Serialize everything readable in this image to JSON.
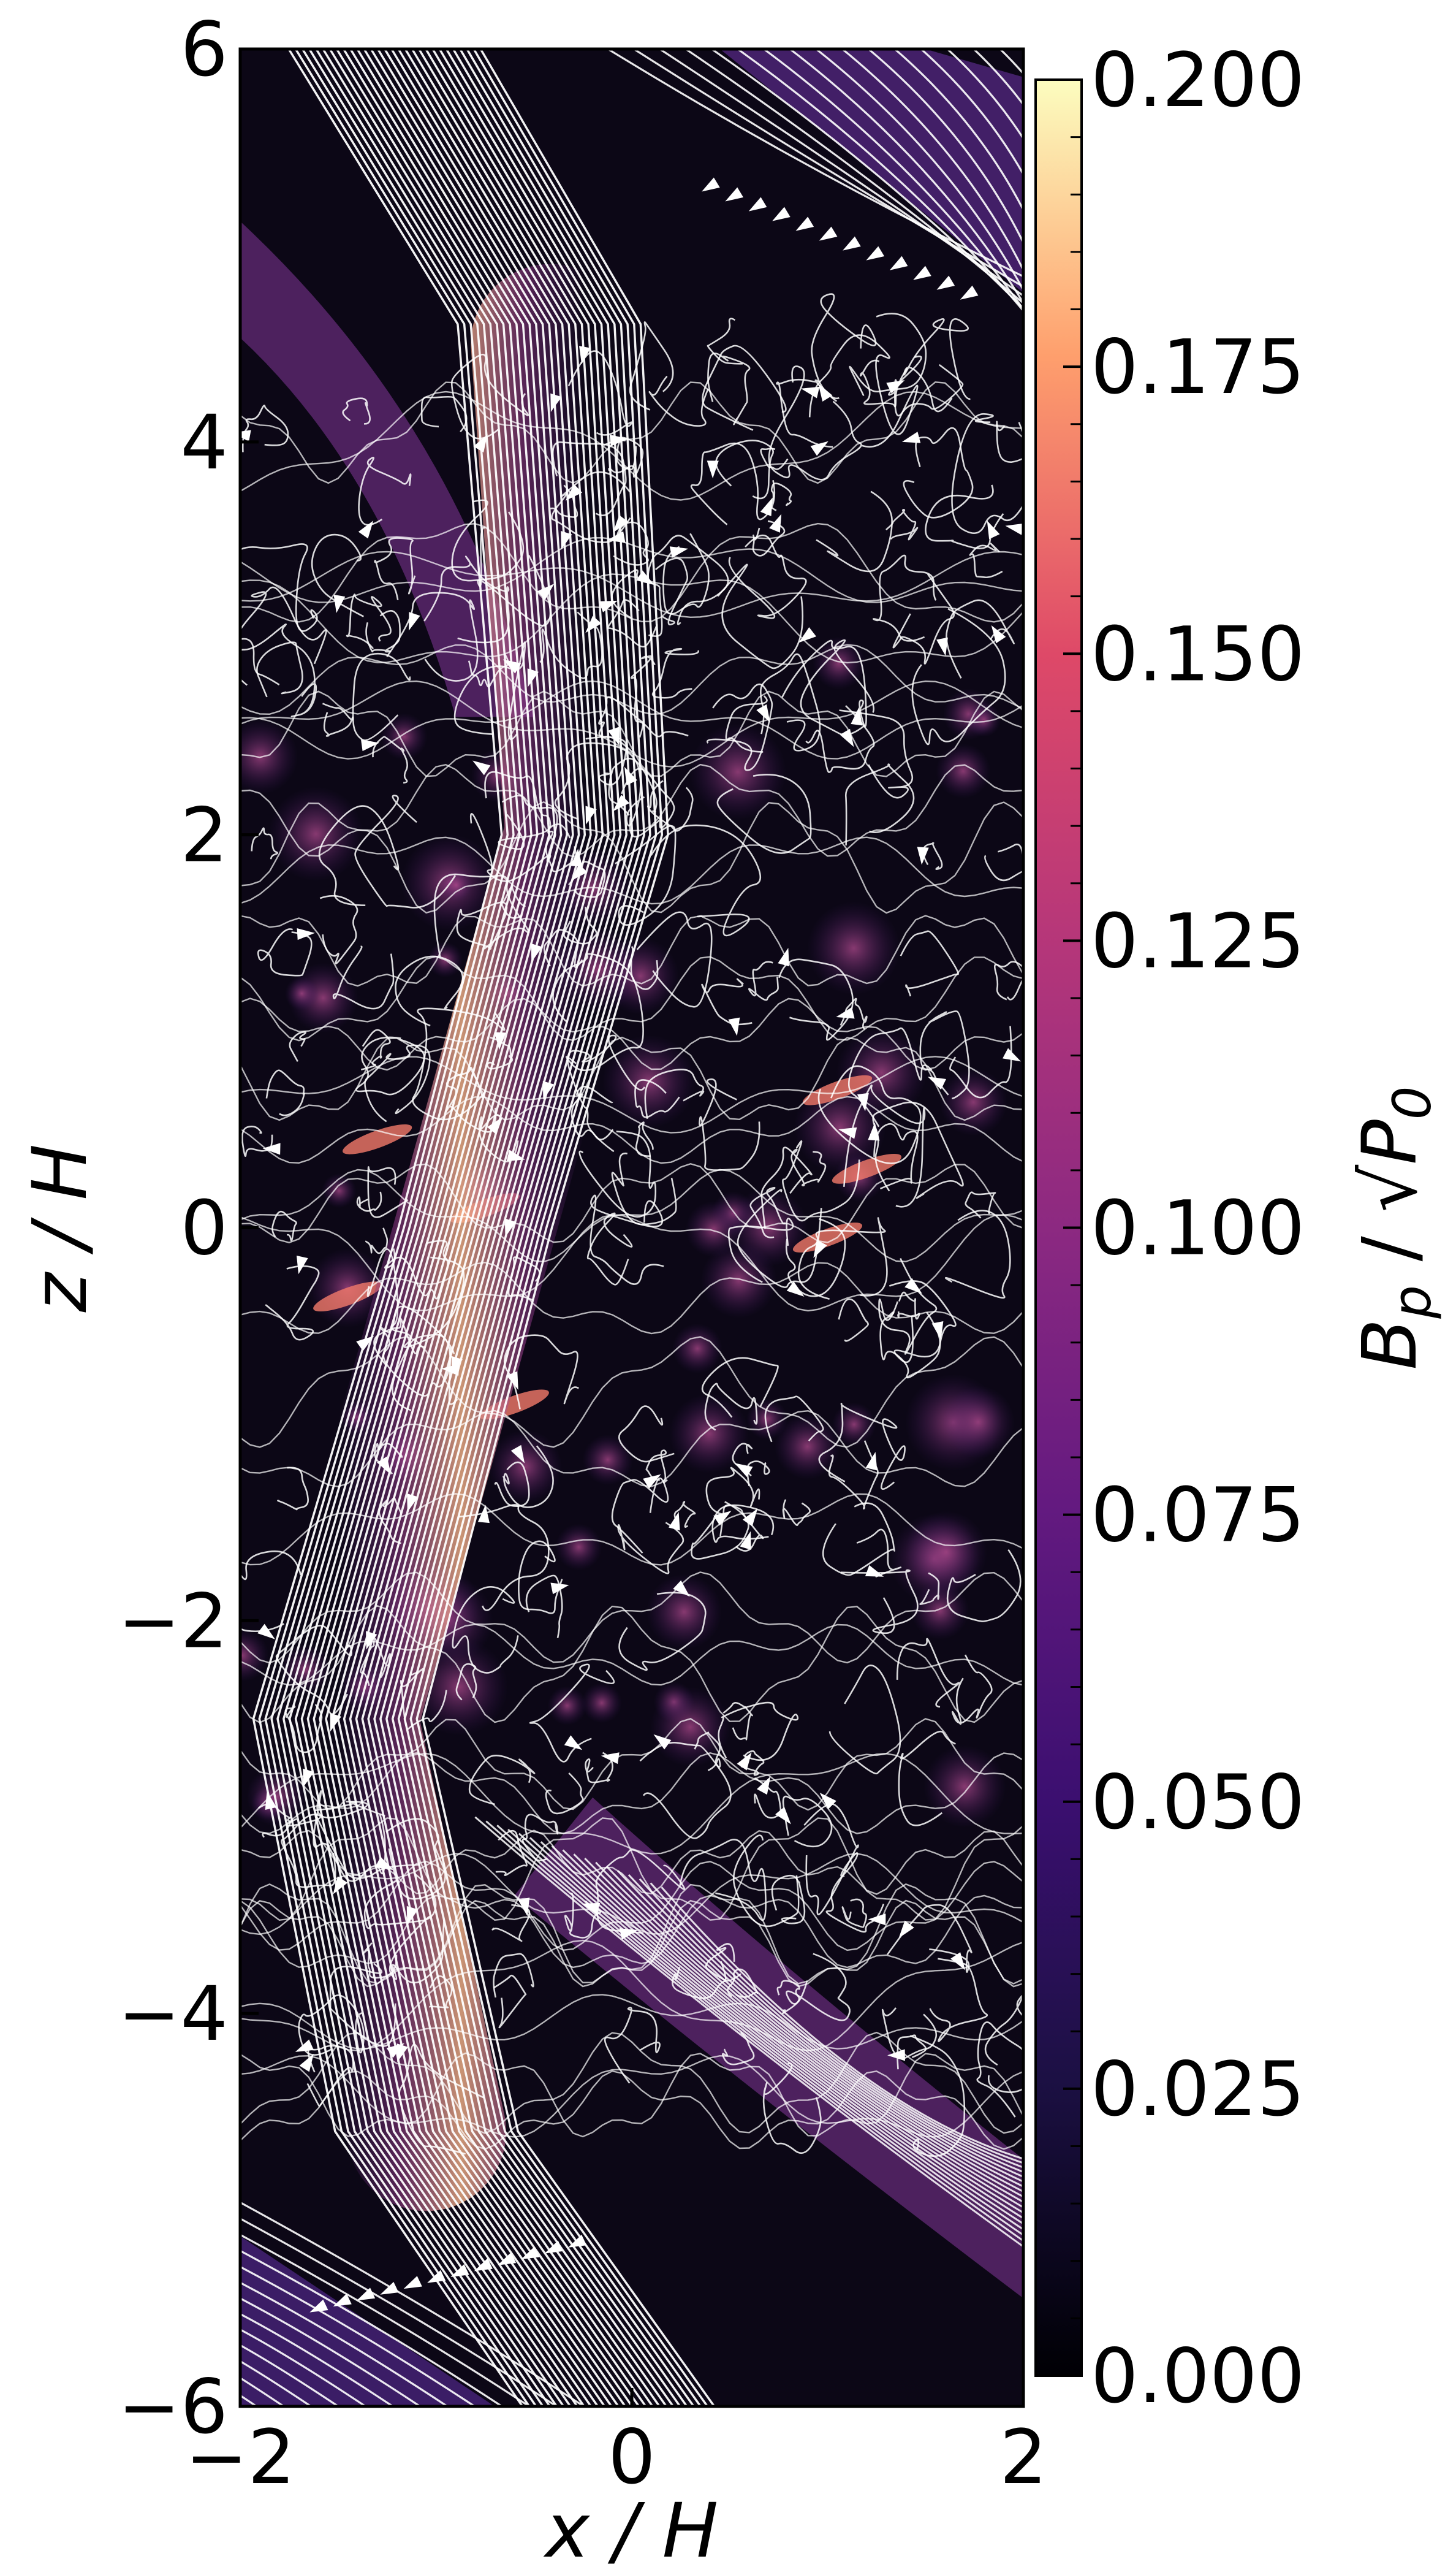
{
  "chart_data": {
    "type": "heatmap",
    "title": "",
    "xlabel": "x / H",
    "ylabel": "z / H",
    "xlim": [
      -2,
      2
    ],
    "ylim": [
      -6,
      6
    ],
    "x_ticks": [
      -2,
      0,
      2
    ],
    "y_ticks": [
      -6,
      -4,
      -2,
      0,
      2,
      4,
      6
    ],
    "x_tick_labels": [
      "−2",
      "0",
      "2"
    ],
    "y_tick_labels": [
      "−6",
      "−4",
      "−2",
      "0",
      "2",
      "4",
      "6"
    ],
    "colorbar": {
      "label_main": "B",
      "label_sub": "p",
      "label_sep": " / √",
      "label_var": "P",
      "label_var_sub": "0",
      "range": [
        0.0,
        0.2
      ],
      "colormap": "magma",
      "ticks": [
        0.0,
        0.025,
        0.05,
        0.075,
        0.1,
        0.125,
        0.15,
        0.175,
        0.2
      ],
      "tick_labels": [
        "0.000",
        "0.025",
        "0.050",
        "0.075",
        "0.100",
        "0.125",
        "0.150",
        "0.175",
        "0.200"
      ]
    },
    "colors": {
      "background_field": "#0c0716",
      "streamline": "#ffffff",
      "bright_band": "#f7b58a",
      "mid_band": "#8f3a83"
    },
    "overlay": "streamlines",
    "grid": false,
    "legend": "none"
  }
}
